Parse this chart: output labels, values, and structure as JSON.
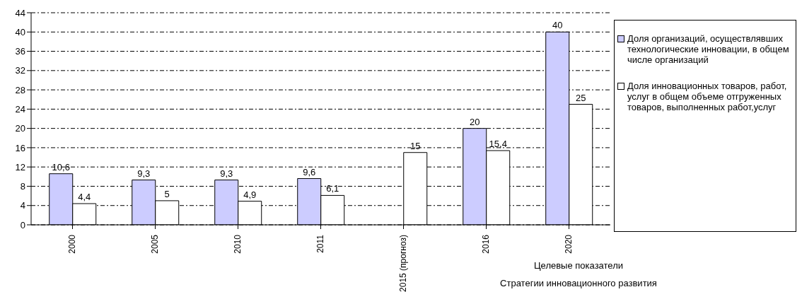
{
  "chart_data": {
    "type": "bar",
    "categories": [
      "2000",
      "2005",
      "2010",
      "2011",
      "2015 (прогноз)",
      "2016",
      "2020"
    ],
    "series": [
      {
        "name": "Доля организаций, осуществлявших технологические инновации, в общем числе организаций",
        "color": "#ccccff",
        "values": [
          10.6,
          9.3,
          9.3,
          9.6,
          null,
          20,
          40
        ],
        "value_labels": [
          "10,6",
          "9,3",
          "9,3",
          "9,6",
          null,
          "20",
          "40"
        ]
      },
      {
        "name": "Доля инновационных товаров, работ, услуг в общем объеме отгруженных товаров, выполненных работ,услуг",
        "color": "#ffffff",
        "values": [
          4.4,
          5,
          4.9,
          6.1,
          15,
          15.4,
          25
        ],
        "value_labels": [
          "4,4",
          "5",
          "4,9",
          "6,1",
          "15",
          "15,4",
          "25"
        ]
      }
    ],
    "ylim": [
      0,
      44
    ],
    "yticks": [
      0,
      4,
      8,
      12,
      16,
      20,
      24,
      28,
      32,
      36,
      40,
      44
    ],
    "grid": "y",
    "legend": "right",
    "annotations": [
      "Целевые показатели",
      "Стратегии инновационного развития"
    ]
  }
}
